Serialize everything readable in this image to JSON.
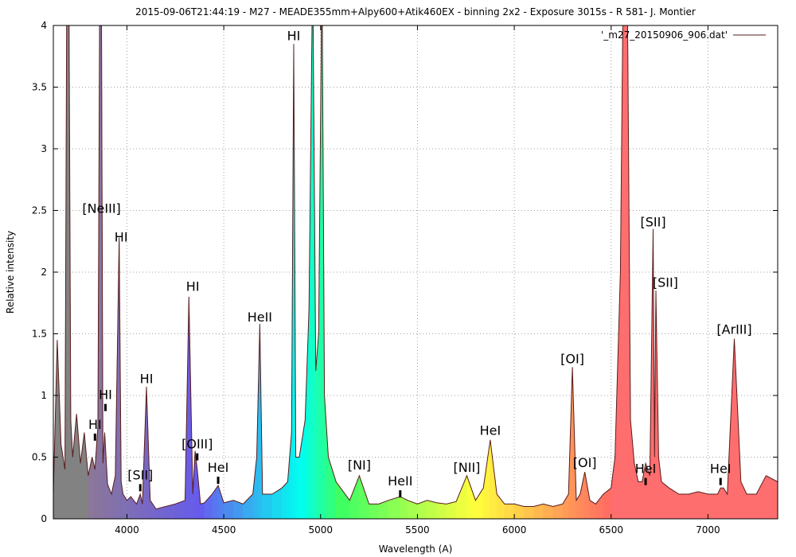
{
  "chart_data": {
    "type": "line",
    "title": "2015-09-06T21:44:19 - M27 - MEADE355mm+Alpy600+Atik460EX - binning 2x2 - Exposure 3015s - R 581- J. Montier",
    "xlabel": "Wavelength (A)",
    "ylabel": "Relative intensity",
    "xlim": [
      3620,
      7360
    ],
    "ylim": [
      0,
      4
    ],
    "xticks": [
      4000,
      4500,
      5000,
      5500,
      6000,
      6500,
      7000
    ],
    "yticks": [
      0,
      0.5,
      1,
      1.5,
      2,
      2.5,
      3,
      3.5,
      4
    ],
    "grid": true,
    "legend_position": "top-right",
    "series": [
      {
        "name": "'_m27_20150906_906.dat'",
        "color": "#5a1e1e",
        "fill": "rainbow",
        "x": [
          3620,
          3640,
          3660,
          3680,
          3690,
          3700,
          3710,
          3720,
          3740,
          3760,
          3780,
          3800,
          3820,
          3835,
          3850,
          3860,
          3868,
          3876,
          3885,
          3900,
          3920,
          3940,
          3960,
          3970,
          3980,
          4000,
          4020,
          4050,
          4069,
          4080,
          4101,
          4120,
          4150,
          4200,
          4250,
          4300,
          4320,
          4340,
          4352,
          4363,
          4380,
          4400,
          4440,
          4471,
          4500,
          4550,
          4600,
          4650,
          4670,
          4686,
          4700,
          4750,
          4800,
          4830,
          4850,
          4861,
          4872,
          4890,
          4920,
          4940,
          4959,
          4975,
          4990,
          5007,
          5020,
          5040,
          5080,
          5150,
          5200,
          5250,
          5300,
          5350,
          5411,
          5450,
          5500,
          5550,
          5600,
          5650,
          5700,
          5755,
          5800,
          5840,
          5876,
          5910,
          5950,
          6000,
          6050,
          6100,
          6150,
          6200,
          6250,
          6280,
          6300,
          6320,
          6340,
          6364,
          6390,
          6420,
          6460,
          6500,
          6520,
          6548,
          6563,
          6583,
          6600,
          6620,
          6640,
          6660,
          6678,
          6700,
          6717,
          6724,
          6731,
          6745,
          6760,
          6800,
          6850,
          6900,
          6950,
          7000,
          7050,
          7065,
          7080,
          7100,
          7136,
          7170,
          7200,
          7250,
          7300,
          7360
        ],
        "y": [
          0.2,
          1.45,
          0.6,
          0.4,
          4.5,
          4.5,
          0.8,
          0.5,
          0.85,
          0.45,
          0.7,
          0.35,
          0.5,
          0.4,
          0.75,
          4.5,
          4.5,
          0.45,
          0.7,
          0.28,
          0.2,
          0.35,
          2.28,
          0.3,
          0.2,
          0.15,
          0.18,
          0.12,
          0.2,
          0.12,
          1.07,
          0.15,
          0.08,
          0.1,
          0.12,
          0.15,
          1.8,
          0.2,
          0.55,
          0.4,
          0.12,
          0.13,
          0.2,
          0.27,
          0.13,
          0.15,
          0.12,
          0.2,
          0.5,
          1.58,
          0.2,
          0.2,
          0.25,
          0.3,
          0.7,
          3.85,
          0.5,
          0.5,
          0.8,
          1.7,
          4.5,
          1.2,
          1.5,
          4.5,
          1.0,
          0.5,
          0.3,
          0.15,
          0.35,
          0.12,
          0.12,
          0.15,
          0.18,
          0.15,
          0.12,
          0.15,
          0.13,
          0.12,
          0.14,
          0.35,
          0.15,
          0.25,
          0.64,
          0.2,
          0.12,
          0.12,
          0.1,
          0.1,
          0.12,
          0.1,
          0.12,
          0.2,
          1.23,
          0.15,
          0.2,
          0.38,
          0.15,
          0.12,
          0.2,
          0.25,
          0.5,
          2.0,
          4.5,
          4.5,
          0.8,
          0.45,
          0.3,
          0.3,
          0.45,
          0.35,
          2.35,
          0.5,
          1.85,
          0.5,
          0.3,
          0.25,
          0.2,
          0.2,
          0.22,
          0.2,
          0.2,
          0.25,
          0.25,
          0.2,
          1.46,
          0.3,
          0.2,
          0.2,
          0.35,
          0.3
        ]
      }
    ],
    "annotations": [
      {
        "text": "HI",
        "x": 3835,
        "y": 0.73,
        "marker": true
      },
      {
        "text": "HI",
        "x": 3889,
        "y": 0.97,
        "marker": true
      },
      {
        "text": "[NeIII]",
        "x": 3869,
        "y": 2.48,
        "marker": false
      },
      {
        "text": "HI",
        "x": 3970,
        "y": 2.25,
        "marker": false
      },
      {
        "text": "[SII]",
        "x": 4069,
        "y": 0.32,
        "marker": true
      },
      {
        "text": "HI",
        "x": 4101,
        "y": 1.1,
        "marker": false
      },
      {
        "text": "HI",
        "x": 4340,
        "y": 1.85,
        "marker": false
      },
      {
        "text": "[OIII]",
        "x": 4363,
        "y": 0.57,
        "marker": true
      },
      {
        "text": "HeI",
        "x": 4471,
        "y": 0.38,
        "marker": true
      },
      {
        "text": "HeII",
        "x": 4686,
        "y": 1.6,
        "marker": false
      },
      {
        "text": "HI",
        "x": 4861,
        "y": 3.88,
        "marker": false
      },
      {
        "text": "[NI]",
        "x": 5200,
        "y": 0.4,
        "marker": false
      },
      {
        "text": "HeII",
        "x": 5411,
        "y": 0.27,
        "marker": true
      },
      {
        "text": "[NII]",
        "x": 5755,
        "y": 0.38,
        "marker": false
      },
      {
        "text": "HeI",
        "x": 5876,
        "y": 0.68,
        "marker": false
      },
      {
        "text": "[OI]",
        "x": 6300,
        "y": 1.26,
        "marker": false
      },
      {
        "text": "[OI]",
        "x": 6364,
        "y": 0.42,
        "marker": false
      },
      {
        "text": "HeI",
        "x": 6678,
        "y": 0.37,
        "marker": true
      },
      {
        "text": "[SII]",
        "x": 6717,
        "y": 2.37,
        "marker": false
      },
      {
        "text": "[SII]",
        "x": 6780,
        "y": 1.88,
        "marker": false
      },
      {
        "text": "HeI",
        "x": 7065,
        "y": 0.37,
        "marker": true
      },
      {
        "text": "[ArIII]",
        "x": 7136,
        "y": 1.5,
        "marker": false
      }
    ]
  }
}
